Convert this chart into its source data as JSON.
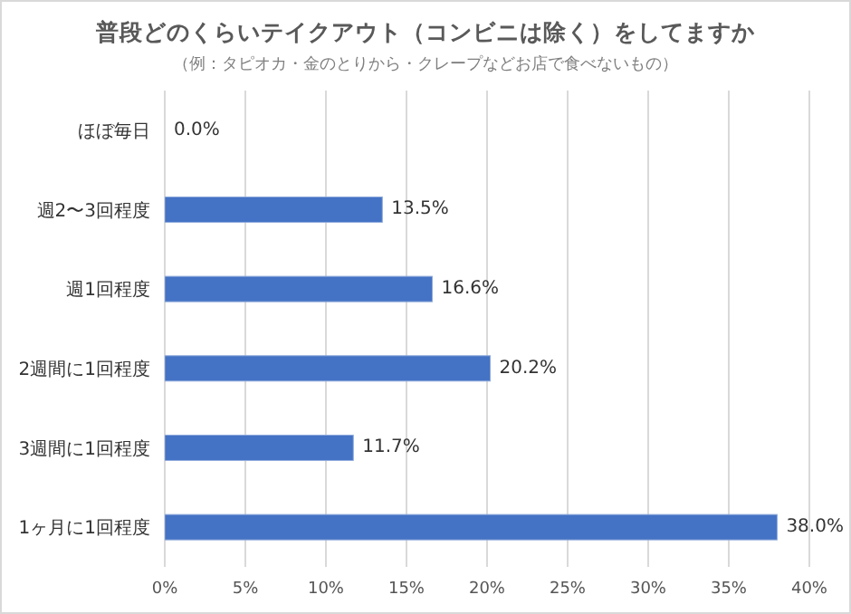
{
  "chart_data": {
    "type": "bar",
    "orientation": "horizontal",
    "title": "普段どのくらいテイクアウト（コンビニは除く）をしてますか",
    "subtitle": "（例：タピオカ・金のとりから・クレープなどお店で食べないもの）",
    "categories": [
      "ほぼ毎日",
      "週2〜3回程度",
      "週1回程度",
      "2週間に1回程度",
      "3週間に1回程度",
      "1ヶ月に1回程度"
    ],
    "values": [
      0,
      13.5,
      16.6,
      20.2,
      11.7,
      38.0
    ],
    "value_labels": [
      "0.0%",
      "13.5%",
      "16.6%",
      "20.2%",
      "11.7%",
      "38.0%"
    ],
    "color": "#4472c4",
    "xlim": [
      0,
      40
    ],
    "xticks": [
      {
        "value": 0,
        "label": "0%"
      },
      {
        "value": 5,
        "label": "5%"
      },
      {
        "value": 10,
        "label": "10%"
      },
      {
        "value": 15,
        "label": "15%"
      },
      {
        "value": 20,
        "label": "20%"
      },
      {
        "value": 25,
        "label": "25%"
      },
      {
        "value": 30,
        "label": "30%"
      },
      {
        "value": 35,
        "label": "35%"
      },
      {
        "value": 40,
        "label": "40%"
      }
    ],
    "grid": "x"
  }
}
